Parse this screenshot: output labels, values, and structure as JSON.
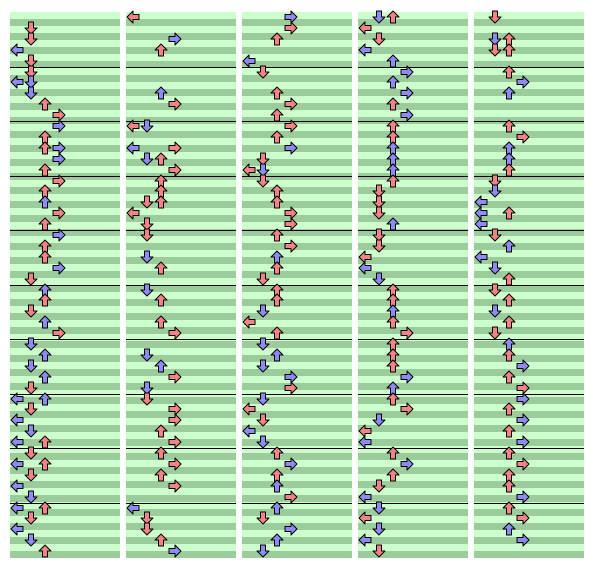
{
  "chart": {
    "lanes": [
      "left",
      "down",
      "up",
      "right"
    ],
    "colors": {
      "band_light": "#ccffcc",
      "band_dark": "#9ccc9c",
      "measure_line": "#000000",
      "note_red": "#f48484",
      "note_blue": "#8c8cf4"
    },
    "columns": [
      {
        "name": "column-1",
        "notes": [
          [
            1,
            1,
            "red"
          ],
          [
            2,
            1,
            "red"
          ],
          [
            3,
            0,
            "blue"
          ],
          [
            4,
            1,
            "red"
          ],
          [
            5,
            1,
            "red"
          ],
          [
            6,
            0,
            "blue"
          ],
          [
            6,
            1,
            "blue"
          ],
          [
            7,
            1,
            "blue"
          ],
          [
            8,
            2,
            "red"
          ],
          [
            9,
            3,
            "red"
          ],
          [
            10,
            3,
            "blue"
          ],
          [
            11,
            2,
            "red"
          ],
          [
            12,
            3,
            "blue"
          ],
          [
            12,
            2,
            "red"
          ],
          [
            13,
            3,
            "blue"
          ],
          [
            14,
            2,
            "red"
          ],
          [
            15,
            3,
            "red"
          ],
          [
            16,
            2,
            "red"
          ],
          [
            17,
            2,
            "blue"
          ],
          [
            18,
            3,
            "red"
          ],
          [
            19,
            2,
            "red"
          ],
          [
            20,
            3,
            "blue"
          ],
          [
            21,
            2,
            "red"
          ],
          [
            22,
            2,
            "red"
          ],
          [
            23,
            3,
            "blue"
          ],
          [
            24,
            1,
            "red"
          ],
          [
            25,
            2,
            "blue"
          ],
          [
            26,
            2,
            "red"
          ],
          [
            27,
            1,
            "red"
          ],
          [
            28,
            2,
            "blue"
          ],
          [
            29,
            3,
            "red"
          ],
          [
            30,
            1,
            "blue"
          ],
          [
            31,
            2,
            "blue"
          ],
          [
            32,
            1,
            "blue"
          ],
          [
            33,
            2,
            "blue"
          ],
          [
            34,
            1,
            "red"
          ],
          [
            35,
            0,
            "blue"
          ],
          [
            35,
            2,
            "blue"
          ],
          [
            36,
            1,
            "red"
          ],
          [
            37,
            0,
            "blue"
          ],
          [
            38,
            1,
            "blue"
          ],
          [
            39,
            0,
            "blue"
          ],
          [
            39,
            2,
            "red"
          ],
          [
            40,
            1,
            "red"
          ],
          [
            41,
            0,
            "blue"
          ],
          [
            41,
            2,
            "red"
          ],
          [
            42,
            1,
            "red"
          ],
          [
            43,
            0,
            "blue"
          ],
          [
            44,
            1,
            "blue"
          ],
          [
            45,
            0,
            "blue"
          ],
          [
            45,
            2,
            "red"
          ],
          [
            46,
            1,
            "red"
          ],
          [
            47,
            0,
            "blue"
          ],
          [
            48,
            1,
            "blue"
          ],
          [
            49,
            2,
            "red"
          ]
        ]
      },
      {
        "name": "column-2",
        "notes": [
          [
            0,
            0,
            "red"
          ],
          [
            2,
            3,
            "blue"
          ],
          [
            3,
            2,
            "red"
          ],
          [
            7,
            2,
            "blue"
          ],
          [
            8,
            3,
            "red"
          ],
          [
            10,
            0,
            "red"
          ],
          [
            10,
            1,
            "blue"
          ],
          [
            12,
            0,
            "blue"
          ],
          [
            12,
            3,
            "red"
          ],
          [
            13,
            1,
            "blue"
          ],
          [
            13,
            2,
            "red"
          ],
          [
            14,
            3,
            "red"
          ],
          [
            15,
            2,
            "red"
          ],
          [
            16,
            2,
            "red"
          ],
          [
            17,
            1,
            "red"
          ],
          [
            17,
            2,
            "red"
          ],
          [
            18,
            0,
            "red"
          ],
          [
            19,
            1,
            "red"
          ],
          [
            20,
            1,
            "red"
          ],
          [
            22,
            1,
            "blue"
          ],
          [
            23,
            2,
            "red"
          ],
          [
            25,
            1,
            "blue"
          ],
          [
            26,
            2,
            "red"
          ],
          [
            28,
            2,
            "red"
          ],
          [
            29,
            3,
            "red"
          ],
          [
            31,
            1,
            "blue"
          ],
          [
            32,
            2,
            "blue"
          ],
          [
            33,
            3,
            "red"
          ],
          [
            34,
            1,
            "blue"
          ],
          [
            35,
            1,
            "red"
          ],
          [
            36,
            3,
            "red"
          ],
          [
            37,
            3,
            "red"
          ],
          [
            38,
            2,
            "red"
          ],
          [
            39,
            3,
            "red"
          ],
          [
            40,
            2,
            "red"
          ],
          [
            41,
            3,
            "red"
          ],
          [
            42,
            2,
            "red"
          ],
          [
            43,
            3,
            "red"
          ],
          [
            45,
            0,
            "blue"
          ],
          [
            46,
            1,
            "red"
          ],
          [
            47,
            1,
            "red"
          ],
          [
            48,
            2,
            "red"
          ],
          [
            49,
            3,
            "blue"
          ]
        ]
      },
      {
        "name": "column-3",
        "notes": [
          [
            0,
            3,
            "blue"
          ],
          [
            1,
            3,
            "red"
          ],
          [
            2,
            2,
            "red"
          ],
          [
            4,
            0,
            "blue"
          ],
          [
            5,
            1,
            "red"
          ],
          [
            7,
            2,
            "red"
          ],
          [
            8,
            3,
            "red"
          ],
          [
            9,
            2,
            "red"
          ],
          [
            10,
            3,
            "red"
          ],
          [
            11,
            2,
            "red"
          ],
          [
            12,
            3,
            "blue"
          ],
          [
            13,
            1,
            "red"
          ],
          [
            14,
            0,
            "red"
          ],
          [
            14,
            1,
            "blue"
          ],
          [
            15,
            1,
            "red"
          ],
          [
            16,
            2,
            "red"
          ],
          [
            17,
            2,
            "red"
          ],
          [
            18,
            3,
            "red"
          ],
          [
            19,
            3,
            "red"
          ],
          [
            20,
            2,
            "red"
          ],
          [
            21,
            3,
            "red"
          ],
          [
            22,
            2,
            "blue"
          ],
          [
            23,
            2,
            "red"
          ],
          [
            24,
            1,
            "red"
          ],
          [
            25,
            2,
            "red"
          ],
          [
            26,
            2,
            "red"
          ],
          [
            27,
            1,
            "blue"
          ],
          [
            28,
            0,
            "red"
          ],
          [
            29,
            2,
            "red"
          ],
          [
            30,
            1,
            "blue"
          ],
          [
            31,
            2,
            "blue"
          ],
          [
            32,
            1,
            "blue"
          ],
          [
            33,
            3,
            "blue"
          ],
          [
            34,
            3,
            "red"
          ],
          [
            35,
            1,
            "blue"
          ],
          [
            36,
            0,
            "red"
          ],
          [
            37,
            1,
            "red"
          ],
          [
            38,
            0,
            "blue"
          ],
          [
            39,
            1,
            "blue"
          ],
          [
            40,
            2,
            "red"
          ],
          [
            41,
            3,
            "blue"
          ],
          [
            42,
            2,
            "red"
          ],
          [
            43,
            2,
            "blue"
          ],
          [
            44,
            3,
            "red"
          ],
          [
            45,
            2,
            "blue"
          ],
          [
            46,
            1,
            "red"
          ],
          [
            47,
            3,
            "blue"
          ],
          [
            48,
            2,
            "blue"
          ],
          [
            49,
            1,
            "blue"
          ]
        ]
      },
      {
        "name": "column-4",
        "notes": [
          [
            0,
            1,
            "blue"
          ],
          [
            0,
            2,
            "red"
          ],
          [
            1,
            0,
            "red"
          ],
          [
            2,
            1,
            "red"
          ],
          [
            3,
            0,
            "blue"
          ],
          [
            4,
            2,
            "blue"
          ],
          [
            5,
            3,
            "blue"
          ],
          [
            6,
            2,
            "blue"
          ],
          [
            7,
            3,
            "blue"
          ],
          [
            8,
            2,
            "red"
          ],
          [
            9,
            3,
            "blue"
          ],
          [
            10,
            2,
            "red"
          ],
          [
            11,
            2,
            "red"
          ],
          [
            12,
            2,
            "blue"
          ],
          [
            13,
            2,
            "blue"
          ],
          [
            14,
            2,
            "blue"
          ],
          [
            15,
            2,
            "red"
          ],
          [
            16,
            1,
            "red"
          ],
          [
            17,
            1,
            "red"
          ],
          [
            18,
            1,
            "red"
          ],
          [
            19,
            2,
            "blue"
          ],
          [
            20,
            1,
            "red"
          ],
          [
            21,
            1,
            "red"
          ],
          [
            22,
            0,
            "red"
          ],
          [
            23,
            0,
            "blue"
          ],
          [
            24,
            1,
            "blue"
          ],
          [
            25,
            2,
            "red"
          ],
          [
            26,
            2,
            "red"
          ],
          [
            27,
            2,
            "blue"
          ],
          [
            28,
            2,
            "red"
          ],
          [
            29,
            3,
            "red"
          ],
          [
            30,
            2,
            "red"
          ],
          [
            31,
            2,
            "red"
          ],
          [
            32,
            2,
            "red"
          ],
          [
            33,
            3,
            "blue"
          ],
          [
            34,
            2,
            "blue"
          ],
          [
            35,
            2,
            "red"
          ],
          [
            36,
            3,
            "red"
          ],
          [
            37,
            1,
            "blue"
          ],
          [
            38,
            0,
            "red"
          ],
          [
            39,
            0,
            "blue"
          ],
          [
            40,
            2,
            "red"
          ],
          [
            41,
            3,
            "blue"
          ],
          [
            42,
            2,
            "red"
          ],
          [
            43,
            1,
            "red"
          ],
          [
            44,
            0,
            "blue"
          ],
          [
            45,
            1,
            "blue"
          ],
          [
            46,
            0,
            "red"
          ],
          [
            47,
            1,
            "blue"
          ],
          [
            48,
            0,
            "blue"
          ],
          [
            49,
            1,
            "red"
          ]
        ]
      },
      {
        "name": "column-5",
        "notes": [
          [
            0,
            1,
            "red"
          ],
          [
            2,
            1,
            "blue"
          ],
          [
            2,
            2,
            "red"
          ],
          [
            3,
            1,
            "red"
          ],
          [
            3,
            2,
            "red"
          ],
          [
            5,
            2,
            "red"
          ],
          [
            6,
            3,
            "blue"
          ],
          [
            7,
            2,
            "blue"
          ],
          [
            10,
            2,
            "red"
          ],
          [
            11,
            3,
            "red"
          ],
          [
            12,
            2,
            "blue"
          ],
          [
            13,
            2,
            "blue"
          ],
          [
            14,
            2,
            "red"
          ],
          [
            15,
            1,
            "red"
          ],
          [
            16,
            1,
            "blue"
          ],
          [
            17,
            0,
            "blue"
          ],
          [
            18,
            0,
            "blue"
          ],
          [
            18,
            2,
            "red"
          ],
          [
            19,
            0,
            "blue"
          ],
          [
            20,
            1,
            "red"
          ],
          [
            21,
            2,
            "blue"
          ],
          [
            22,
            0,
            "blue"
          ],
          [
            23,
            1,
            "blue"
          ],
          [
            24,
            2,
            "red"
          ],
          [
            25,
            1,
            "red"
          ],
          [
            26,
            2,
            "red"
          ],
          [
            27,
            1,
            "blue"
          ],
          [
            28,
            2,
            "red"
          ],
          [
            29,
            1,
            "red"
          ],
          [
            30,
            2,
            "blue"
          ],
          [
            31,
            2,
            "red"
          ],
          [
            32,
            3,
            "blue"
          ],
          [
            33,
            2,
            "red"
          ],
          [
            34,
            3,
            "red"
          ],
          [
            35,
            3,
            "blue"
          ],
          [
            36,
            2,
            "red"
          ],
          [
            37,
            3,
            "blue"
          ],
          [
            38,
            2,
            "red"
          ],
          [
            39,
            3,
            "blue"
          ],
          [
            40,
            2,
            "red"
          ],
          [
            41,
            3,
            "red"
          ],
          [
            42,
            2,
            "red"
          ],
          [
            43,
            2,
            "red"
          ],
          [
            44,
            3,
            "blue"
          ],
          [
            45,
            2,
            "red"
          ],
          [
            46,
            3,
            "red"
          ],
          [
            47,
            2,
            "blue"
          ],
          [
            48,
            3,
            "blue"
          ]
        ]
      }
    ]
  }
}
